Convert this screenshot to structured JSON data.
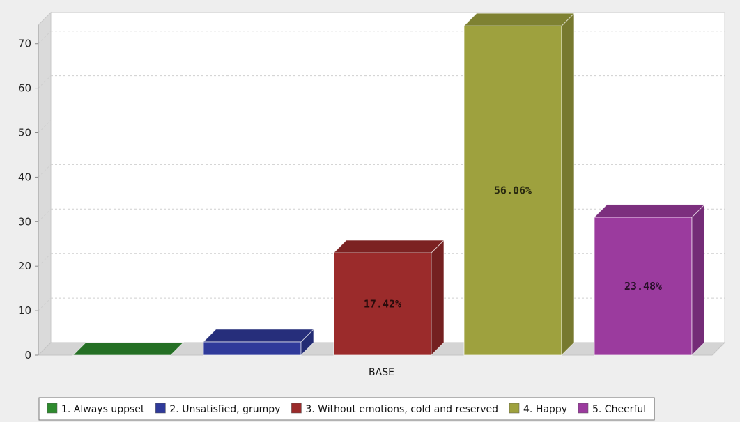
{
  "chart_data": {
    "type": "bar",
    "categories": [
      "BASE"
    ],
    "series": [
      {
        "name": "1. Always uppset",
        "value": 0,
        "label": "",
        "color": "#2e8b2e"
      },
      {
        "name": "2. Unsatisfied, grumpy",
        "value": 3,
        "label": "",
        "color": "#2f3a9a"
      },
      {
        "name": "3. Without emotions, cold and reserved",
        "value": 23,
        "label": "17.42%",
        "color": "#9b2b2b"
      },
      {
        "name": "4. Happy",
        "value": 74,
        "label": "56.06%",
        "color": "#9ea13e"
      },
      {
        "name": "5. Cheerful",
        "value": 31,
        "label": "23.48%",
        "color": "#9b3b9e"
      }
    ],
    "ylim": [
      0,
      77
    ],
    "yticks": [
      0,
      10,
      20,
      30,
      40,
      50,
      60,
      70
    ],
    "grid": true,
    "legend": "bottom",
    "title": "",
    "xlabel": "",
    "ylabel": ""
  }
}
